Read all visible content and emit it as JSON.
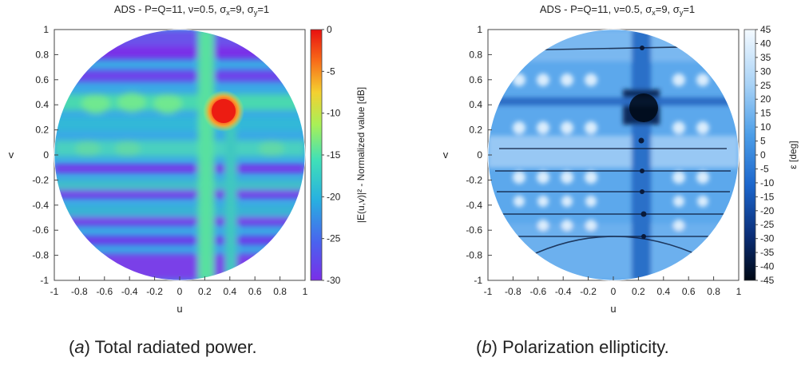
{
  "chart_data": [
    {
      "type": "heatmap",
      "title": "ADS - P=Q=11, ν=0.5, σx=9, σy=1",
      "title_parts": {
        "lead": "ADS - P=Q=11, ν=0.5, σ",
        "sub1": "x",
        "mid": "=9, σ",
        "sub2": "y",
        "tail": "=1"
      },
      "xlabel": "u",
      "ylabel": "v",
      "xlim": [
        -1,
        1
      ],
      "ylim": [
        -1,
        1
      ],
      "x_ticks": [
        "-1",
        "-0.8",
        "-0.6",
        "-0.4",
        "-0.2",
        "0",
        "0.2",
        "0.4",
        "0.6",
        "0.8",
        "1"
      ],
      "y_ticks": [
        "1",
        "0.8",
        "0.6",
        "0.4",
        "0.2",
        "0",
        "-0.2",
        "-0.4",
        "-0.6",
        "-0.8",
        "-1"
      ],
      "colorbar": {
        "label": "|E(u,v)|² - Normalized value [dB]",
        "range": [
          -30,
          0
        ],
        "ticks": [
          "0",
          "-5",
          "-10",
          "-15",
          "-20",
          "-25",
          "-30"
        ],
        "colormap": "rainbow",
        "colors": [
          "#7a2ee8",
          "#3c7cf0",
          "#28c8d8",
          "#48e8a8",
          "#b8f050",
          "#f8c828",
          "#f84818",
          "#e81010"
        ]
      },
      "peak": {
        "u": 0.33,
        "v": 0.35,
        "value": 0
      },
      "domain": "unit circle u²+v²≤1",
      "grid": false
    },
    {
      "type": "heatmap",
      "title": "ADS - P=Q=11, ν=0.5, σx=9, σy=1",
      "title_parts": {
        "lead": "ADS - P=Q=11, ν=0.5, σ",
        "sub1": "x",
        "mid": "=9, σ",
        "sub2": "y",
        "tail": "=1"
      },
      "xlabel": "u",
      "ylabel": "v",
      "xlim": [
        -1,
        1
      ],
      "ylim": [
        -1,
        1
      ],
      "x_ticks": [
        "-1",
        "-0.8",
        "-0.6",
        "-0.4",
        "-0.2",
        "0",
        "0.2",
        "0.4",
        "0.6",
        "0.8",
        "1"
      ],
      "y_ticks": [
        "1",
        "0.8",
        "0.6",
        "0.4",
        "0.2",
        "0",
        "-0.2",
        "-0.4",
        "-0.6",
        "-0.8",
        "-1"
      ],
      "colorbar": {
        "label": "ε [deg]",
        "range": [
          -45,
          45
        ],
        "ticks": [
          "45",
          "40",
          "35",
          "30",
          "25",
          "20",
          "15",
          "10",
          "5",
          "0",
          "-5",
          "-10",
          "-15",
          "-20",
          "-25",
          "-30",
          "-35",
          "-40",
          "-45"
        ],
        "colormap": "blues",
        "colors": [
          "#000814",
          "#0a3a8c",
          "#1f70d8",
          "#58a8ee",
          "#a8d4f6",
          "#f4faff"
        ]
      },
      "domain": "unit circle u²+v²≤1",
      "grid": false
    }
  ],
  "captions": {
    "a": {
      "label": "a",
      "text": " Total radiated power."
    },
    "b": {
      "label": "b",
      "text": " Polarization ellipticity."
    }
  }
}
